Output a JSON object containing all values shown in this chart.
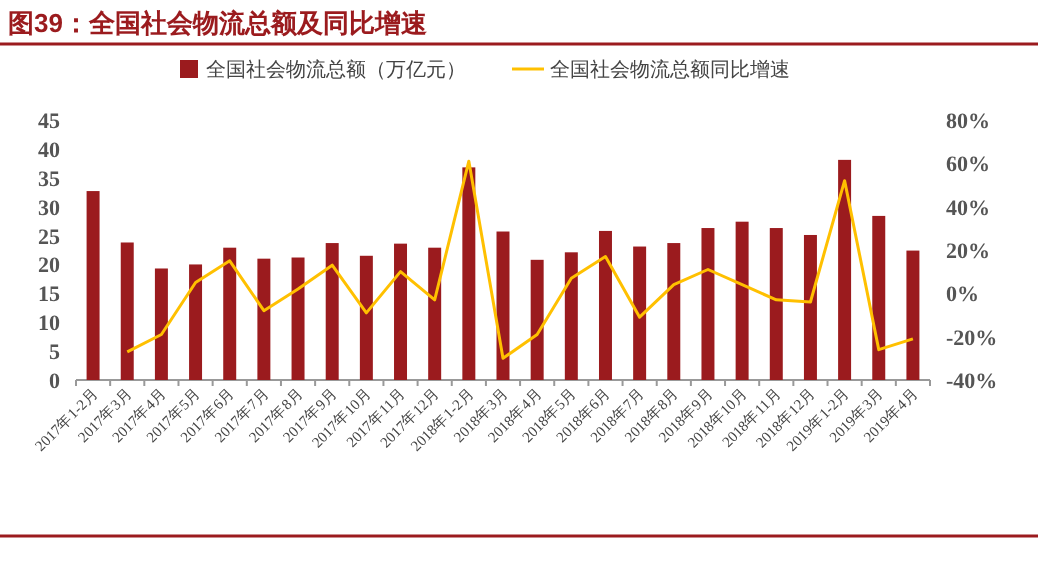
{
  "chart_data": {
    "type": "bar",
    "title": "图39：全国社会物流总额及同比增速",
    "categories": [
      "2017年1-2月",
      "2017年3月",
      "2017年4月",
      "2017年5月",
      "2017年6月",
      "2017年7月",
      "2017年8月",
      "2017年9月",
      "2017年10月",
      "2017年11月",
      "2017年12月",
      "2018年1-2月",
      "2018年3月",
      "2018年4月",
      "2018年5月",
      "2018年6月",
      "2018年7月",
      "2018年8月",
      "2018年9月",
      "2018年10月",
      "2018年11月",
      "2018年12月",
      "2019年1-2月",
      "2019年3月",
      "2019年4月"
    ],
    "series": [
      {
        "name": "全国社会物流总额（万亿元）",
        "color": "#9b1b1e",
        "values": [
          32.7,
          23.8,
          19.3,
          20.0,
          22.9,
          21.0,
          21.2,
          23.7,
          21.5,
          23.6,
          22.9,
          36.8,
          25.7,
          20.8,
          22.1,
          25.8,
          23.1,
          23.7,
          26.3,
          27.4,
          26.3,
          25.1,
          38.1,
          28.4,
          22.4
        ]
      },
      {
        "name": "全国社会物流总额同比增速",
        "type": "line",
        "axis": "y2",
        "color": "#ffc000",
        "values": [
          null,
          -27,
          -19,
          5,
          15,
          -8,
          2,
          13,
          -9,
          10,
          -3,
          61,
          -30,
          -19,
          7,
          17,
          -11,
          4,
          11,
          4,
          -3,
          -4,
          52,
          -26,
          -21
        ]
      }
    ],
    "ylim": [
      0,
      45
    ],
    "yticks": [
      0,
      5,
      10,
      15,
      20,
      25,
      30,
      35,
      40,
      45
    ],
    "y2lim": [
      -40,
      80
    ],
    "y2ticks": [
      {
        "value": -40,
        "label": "-40%"
      },
      {
        "value": -20,
        "label": "-20%"
      },
      {
        "value": 0,
        "label": "0%"
      },
      {
        "value": 20,
        "label": "20%"
      },
      {
        "value": 40,
        "label": "40%"
      },
      {
        "value": 60,
        "label": "60%"
      },
      {
        "value": 80,
        "label": "80%"
      }
    ],
    "legend": "top"
  }
}
